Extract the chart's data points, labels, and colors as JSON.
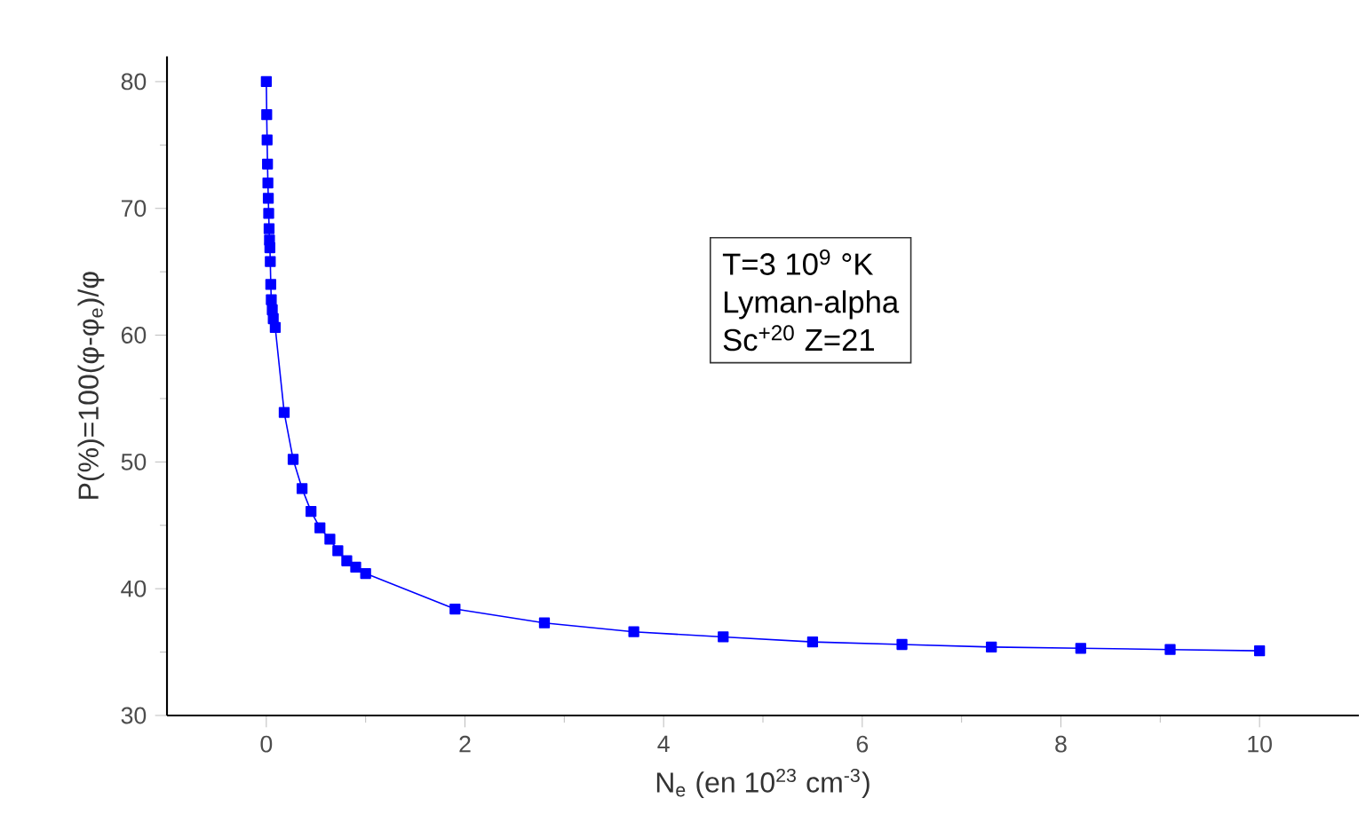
{
  "chart_data": {
    "type": "line",
    "xlabel": "N$_{e}$ (en 10$^{23}$ cm$^{-3}$)",
    "ylabel": "P(%)=100(φ-φ$_{e}$)/φ",
    "annotations": [
      "T=3 10$^{9}$ °K",
      "Lyman-alpha",
      "Sc$^{+20}$ Z=21"
    ],
    "x": [
      0.0,
      0.004,
      0.008,
      0.012,
      0.016,
      0.02,
      0.024,
      0.028,
      0.032,
      0.036,
      0.04,
      0.045,
      0.05,
      0.06,
      0.07,
      0.09,
      0.18,
      0.27,
      0.36,
      0.45,
      0.54,
      0.64,
      0.72,
      0.81,
      0.9,
      1.0,
      1.9,
      2.8,
      3.7,
      4.6,
      5.5,
      6.4,
      7.3,
      8.2,
      9.1,
      10.0
    ],
    "series": [
      {
        "color": "#0000ff",
        "values": [
          80.0,
          77.4,
          75.4,
          73.5,
          72.0,
          70.8,
          69.6,
          68.4,
          67.5,
          66.9,
          65.8,
          64.0,
          62.8,
          62.0,
          61.3,
          60.6,
          53.9,
          50.2,
          47.9,
          46.1,
          44.8,
          43.9,
          43.0,
          42.2,
          41.7,
          41.2,
          38.4,
          37.3,
          36.6,
          36.2,
          35.8,
          35.6,
          35.4,
          35.3,
          35.2,
          35.1
        ]
      }
    ],
    "xlim": [
      -1,
      11
    ],
    "ylim": [
      30,
      82
    ],
    "xticks": [
      0,
      2,
      4,
      6,
      8,
      10
    ],
    "yticks": [
      30,
      40,
      50,
      60,
      70,
      80
    ],
    "grid": false,
    "marker": "square",
    "line_style": "solid"
  }
}
